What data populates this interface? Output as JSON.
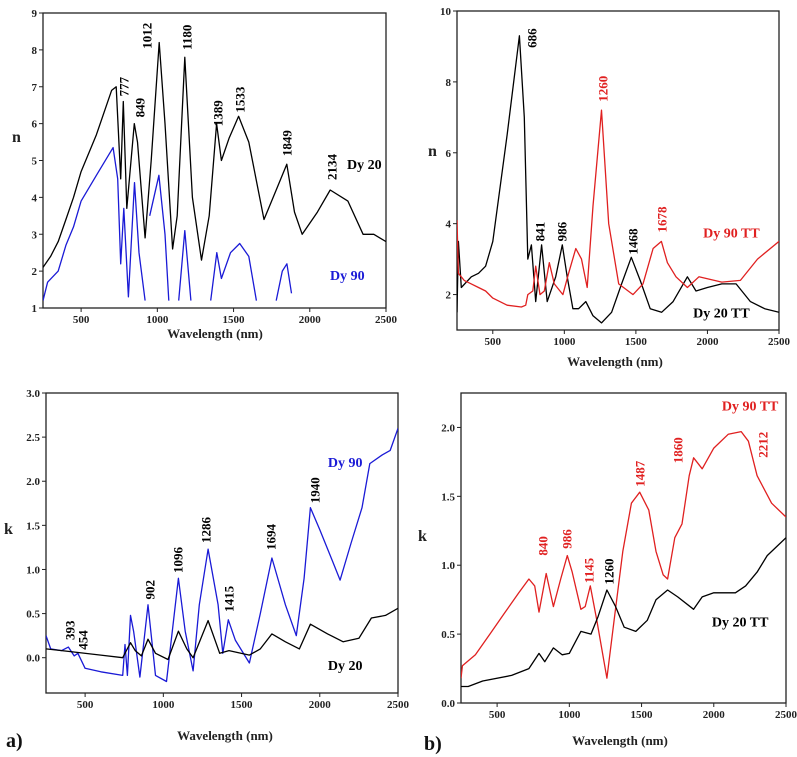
{
  "panel_labels": [
    "a)",
    "b)"
  ],
  "colors": {
    "Dy 20": "#000000",
    "Dy 90": "#1a1ad6",
    "Dy 20 TT": "#000000",
    "Dy 90 TT": "#e02020"
  },
  "chart_data": [
    {
      "type": "line",
      "xlabel": "Wavelength (nm)",
      "ylabel": "n",
      "xlim": [
        250,
        2500
      ],
      "ylim": [
        1,
        9
      ],
      "xticks": [
        500,
        1000,
        1500,
        2000,
        2500
      ],
      "yticks": [
        1,
        2,
        3,
        4,
        5,
        6,
        7,
        8,
        9
      ],
      "ytick_format": "0",
      "grid": false,
      "series": [
        {
          "name": "Dy 20",
          "color": "#000000",
          "x": [
            250,
            300,
            350,
            400,
            450,
            500,
            600,
            700,
            730,
            760,
            777,
            800,
            849,
            870,
            920,
            960,
            1012,
            1050,
            1100,
            1130,
            1180,
            1230,
            1290,
            1340,
            1389,
            1420,
            1470,
            1533,
            1600,
            1700,
            1780,
            1849,
            1900,
            1950,
            2050,
            2134,
            2250,
            2350,
            2420,
            2500
          ],
          "y": [
            2.1,
            2.4,
            2.8,
            3.4,
            4.0,
            4.7,
            5.7,
            6.9,
            7.0,
            4.5,
            6.6,
            3.7,
            6.0,
            5.5,
            2.9,
            5.0,
            8.2,
            6.0,
            2.6,
            3.5,
            7.8,
            4.0,
            2.3,
            3.5,
            6.0,
            5.0,
            5.6,
            6.2,
            5.5,
            3.4,
            4.2,
            4.9,
            3.6,
            3.0,
            3.6,
            4.2,
            3.9,
            3.0,
            3.0,
            2.8
          ]
        },
        {
          "name": "Dy 90",
          "color": "#1a1ad6",
          "x": [
            250,
            280,
            350,
            400,
            450,
            500,
            600,
            710,
            740,
            760,
            780,
            810,
            850,
            880,
            920,
            null,
            950,
            1010,
            1050,
            1075,
            null,
            1140,
            1180,
            1220,
            null,
            1350,
            1390,
            1420,
            1480,
            1540,
            1600,
            1650,
            null,
            1780,
            1820,
            1850,
            1880
          ],
          "y": [
            1.2,
            1.7,
            2.0,
            2.7,
            3.2,
            3.9,
            4.6,
            5.35,
            4.5,
            2.2,
            3.7,
            1.3,
            4.4,
            2.5,
            1.2,
            null,
            3.5,
            4.6,
            3.0,
            1.2,
            null,
            1.2,
            3.1,
            1.2,
            null,
            1.2,
            2.5,
            1.8,
            2.5,
            2.75,
            2.4,
            1.2,
            null,
            1.2,
            2.0,
            2.2,
            1.4
          ]
        }
      ],
      "annotations": [
        {
          "text": "777",
          "x": 781,
          "y": 6.74,
          "color": "#000000"
        },
        {
          "text": "849",
          "x": 886,
          "y": 6.17,
          "color": "#000000"
        },
        {
          "text": "1012",
          "x": 932,
          "y": 8.03,
          "color": "#000000"
        },
        {
          "text": "1180",
          "x": 1194,
          "y": 8.0,
          "color": "#000000"
        },
        {
          "text": "1389",
          "x": 1398,
          "y": 5.93,
          "color": "#000000"
        },
        {
          "text": "1533",
          "x": 1542,
          "y": 6.3,
          "color": "#000000"
        },
        {
          "text": "1849",
          "x": 1851,
          "y": 5.12,
          "color": "#000000"
        },
        {
          "text": "2134",
          "x": 2146,
          "y": 4.47,
          "color": "#000000"
        }
      ],
      "series_labels": [
        {
          "text": "Dy 20",
          "x": 2244,
          "y": 4.9,
          "color": "#000000"
        },
        {
          "text": "Dy 90",
          "x": 2133,
          "y": 1.9,
          "color": "#1a1ad6"
        }
      ]
    },
    {
      "type": "line",
      "xlabel": "Wavelength (nm)",
      "ylabel": "n",
      "xlim": [
        250,
        2500
      ],
      "ylim": [
        1,
        10
      ],
      "xticks": [
        500,
        1000,
        1500,
        2000,
        2500
      ],
      "yticks": [
        2,
        4,
        6,
        8,
        10
      ],
      "ytick_format": "0",
      "grid": false,
      "series": [
        {
          "name": "Dy 20 TT",
          "color": "#000000",
          "x": [
            250,
            260,
            280,
            350,
            400,
            450,
            500,
            600,
            686,
            720,
            745,
            770,
            800,
            841,
            880,
            940,
            986,
            1020,
            1060,
            1100,
            1150,
            1200,
            1260,
            1330,
            1400,
            1468,
            1530,
            1600,
            1680,
            1760,
            1860,
            1920,
            2000,
            2100,
            2200,
            2300,
            2400,
            2500
          ],
          "y": [
            1.5,
            3.5,
            2.2,
            2.5,
            2.6,
            2.8,
            3.5,
            6.5,
            9.3,
            7.0,
            3.0,
            3.4,
            1.8,
            3.4,
            1.8,
            2.5,
            3.4,
            2.5,
            1.6,
            1.6,
            1.8,
            1.4,
            1.2,
            1.5,
            2.3,
            3.05,
            2.4,
            1.6,
            1.5,
            1.8,
            2.5,
            2.1,
            2.2,
            2.3,
            2.3,
            1.8,
            1.6,
            1.5
          ]
        },
        {
          "name": "Dy 90 TT",
          "color": "#e02020",
          "x": [
            250,
            260,
            300,
            350,
            400,
            450,
            500,
            600,
            700,
            730,
            745,
            780,
            800,
            830,
            860,
            895,
            930,
            990,
            1030,
            1080,
            1120,
            1160,
            1200,
            1260,
            1310,
            1380,
            1480,
            1550,
            1620,
            1678,
            1720,
            1780,
            1860,
            1940,
            2100,
            2230,
            2350,
            2500
          ],
          "y": [
            4.1,
            2.6,
            2.4,
            2.3,
            2.2,
            2.1,
            1.9,
            1.7,
            1.65,
            1.7,
            2.0,
            2.1,
            2.8,
            2.0,
            2.1,
            2.9,
            2.3,
            2.0,
            2.6,
            3.3,
            3.0,
            2.2,
            4.5,
            7.2,
            4.0,
            2.3,
            2.0,
            2.3,
            3.3,
            3.5,
            2.9,
            2.5,
            2.2,
            2.5,
            2.35,
            2.4,
            3.0,
            3.5
          ]
        }
      ],
      "annotations": [
        {
          "text": "686",
          "x": 774,
          "y": 8.96,
          "color": "#000000"
        },
        {
          "text": "1260",
          "x": 1270,
          "y": 7.44,
          "color": "#e02020"
        },
        {
          "text": "841",
          "x": 830,
          "y": 3.5,
          "color": "#000000"
        },
        {
          "text": "986",
          "x": 984,
          "y": 3.5,
          "color": "#000000"
        },
        {
          "text": "1468",
          "x": 1480,
          "y": 3.13,
          "color": "#000000"
        },
        {
          "text": "1678",
          "x": 1683,
          "y": 3.75,
          "color": "#e02020"
        }
      ],
      "series_labels": [
        {
          "text": "Dy 90 TT",
          "x": 1970,
          "y": 3.75,
          "color": "#e02020"
        },
        {
          "text": "Dy 20 TT",
          "x": 1900,
          "y": 1.5,
          "color": "#000000"
        }
      ]
    },
    {
      "type": "line",
      "xlabel": "Wavelength (nm)",
      "ylabel": "k",
      "xlim": [
        250,
        2500
      ],
      "ylim": [
        -0.4,
        3.0
      ],
      "xticks": [
        500,
        1000,
        1500,
        2000,
        2500
      ],
      "yticks": [
        0.0,
        0.5,
        1.0,
        1.5,
        2.0,
        2.5,
        3.0
      ],
      "ytick_format": "0.0",
      "grid": false,
      "series": [
        {
          "name": "Dy 90",
          "color": "#1a1ad6",
          "x": [
            250,
            280,
            350,
            393,
            430,
            454,
            500,
            600,
            740,
            755,
            770,
            790,
            810,
            850,
            902,
            950,
            1020,
            1096,
            1140,
            1190,
            1230,
            1286,
            1350,
            1380,
            1415,
            1460,
            1550,
            1620,
            1694,
            1780,
            1850,
            1900,
            1940,
            2000,
            2080,
            2130,
            2200,
            2270,
            2320,
            2400,
            2450,
            2500
          ],
          "y": [
            0.25,
            0.1,
            0.08,
            0.12,
            0.02,
            0.05,
            -0.12,
            -0.16,
            -0.2,
            0.15,
            -0.2,
            0.48,
            0.3,
            -0.22,
            0.6,
            -0.2,
            -0.27,
            0.9,
            0.3,
            -0.15,
            0.6,
            1.23,
            0.6,
            0.05,
            0.43,
            0.2,
            -0.06,
            0.5,
            1.13,
            0.6,
            0.25,
            0.9,
            1.7,
            1.45,
            1.1,
            0.88,
            1.3,
            1.7,
            2.2,
            2.3,
            2.35,
            2.6
          ]
        },
        {
          "name": "Dy 20",
          "color": "#000000",
          "x": [
            250,
            400,
            600,
            740,
            790,
            820,
            860,
            902,
            950,
            1030,
            1096,
            1150,
            1190,
            1286,
            1360,
            1420,
            1550,
            1620,
            1694,
            1780,
            1870,
            1940,
            2050,
            2150,
            2250,
            2330,
            2420,
            2500
          ],
          "y": [
            0.1,
            0.07,
            0.03,
            0.0,
            0.17,
            0.08,
            0.02,
            0.21,
            0.05,
            -0.02,
            0.3,
            0.1,
            0.0,
            0.42,
            0.05,
            0.08,
            0.03,
            0.1,
            0.27,
            0.18,
            0.1,
            0.38,
            0.27,
            0.18,
            0.22,
            0.45,
            0.48,
            0.56
          ]
        }
      ],
      "annotations": [
        {
          "text": "393",
          "x": 403,
          "y": 0.2,
          "color": "#000000"
        },
        {
          "text": "454",
          "x": 486,
          "y": 0.09,
          "color": "#000000"
        },
        {
          "text": "902",
          "x": 915,
          "y": 0.66,
          "color": "#000000"
        },
        {
          "text": "1096",
          "x": 1094,
          "y": 0.96,
          "color": "#000000"
        },
        {
          "text": "1286",
          "x": 1272,
          "y": 1.3,
          "color": "#000000"
        },
        {
          "text": "1415",
          "x": 1419,
          "y": 0.52,
          "color": "#000000"
        },
        {
          "text": "1694",
          "x": 1688,
          "y": 1.22,
          "color": "#000000"
        },
        {
          "text": "1940",
          "x": 1969,
          "y": 1.75,
          "color": "#000000"
        }
      ],
      "series_labels": [
        {
          "text": "Dy 90",
          "x": 2052,
          "y": 2.22,
          "color": "#1a1ad6"
        },
        {
          "text": "Dy 20",
          "x": 2052,
          "y": -0.08,
          "color": "#000000"
        }
      ]
    },
    {
      "type": "line",
      "xlabel": "Wavelength (nm)",
      "ylabel": "k",
      "xlim": [
        250,
        2500
      ],
      "ylim": [
        0.0,
        2.25
      ],
      "xticks": [
        500,
        1000,
        1500,
        2000,
        2500
      ],
      "yticks": [
        0.0,
        0.5,
        1.0,
        1.5,
        2.0
      ],
      "ytick_format": "0.0",
      "grid": false,
      "series": [
        {
          "name": "Dy 90 TT",
          "color": "#e02020",
          "x": [
            250,
            260,
            350,
            450,
            550,
            650,
            720,
            760,
            790,
            840,
            890,
            940,
            986,
            1020,
            1080,
            1110,
            1145,
            1190,
            1260,
            1310,
            1370,
            1430,
            1487,
            1550,
            1600,
            1650,
            1680,
            1730,
            1780,
            1830,
            1860,
            1920,
            2000,
            2100,
            2190,
            2240,
            2300,
            2400,
            2500
          ],
          "y": [
            0.18,
            0.27,
            0.35,
            0.5,
            0.65,
            0.8,
            0.9,
            0.85,
            0.66,
            0.94,
            0.7,
            0.9,
            1.07,
            0.95,
            0.68,
            0.7,
            0.85,
            0.6,
            0.18,
            0.6,
            1.1,
            1.45,
            1.53,
            1.4,
            1.1,
            0.93,
            0.9,
            1.2,
            1.3,
            1.65,
            1.78,
            1.7,
            1.85,
            1.95,
            1.97,
            1.9,
            1.65,
            1.45,
            1.35
          ]
        },
        {
          "name": "Dy 20 TT",
          "color": "#000000",
          "x": [
            250,
            300,
            400,
            600,
            720,
            790,
            830,
            890,
            950,
            1000,
            1080,
            1150,
            1200,
            1260,
            1320,
            1380,
            1460,
            1540,
            1600,
            1680,
            1750,
            1860,
            1920,
            2000,
            2150,
            2220,
            2300,
            2370,
            2500
          ],
          "y": [
            0.12,
            0.12,
            0.16,
            0.2,
            0.25,
            0.36,
            0.3,
            0.4,
            0.35,
            0.36,
            0.52,
            0.5,
            0.63,
            0.82,
            0.7,
            0.55,
            0.52,
            0.6,
            0.75,
            0.82,
            0.77,
            0.68,
            0.77,
            0.8,
            0.8,
            0.85,
            0.95,
            1.07,
            1.2
          ]
        }
      ],
      "annotations": [
        {
          "text": "840",
          "x": 817,
          "y": 1.07,
          "color": "#e02020"
        },
        {
          "text": "986",
          "x": 983,
          "y": 1.12,
          "color": "#e02020"
        },
        {
          "text": "1145",
          "x": 1136,
          "y": 0.87,
          "color": "#e02020"
        },
        {
          "text": "1260",
          "x": 1274,
          "y": 0.86,
          "color": "#000000"
        },
        {
          "text": "1487",
          "x": 1489,
          "y": 1.57,
          "color": "#e02020"
        },
        {
          "text": "1860",
          "x": 1752,
          "y": 1.74,
          "color": "#e02020"
        },
        {
          "text": "2212",
          "x": 2340,
          "y": 1.78,
          "color": "#e02020"
        }
      ],
      "series_labels": [
        {
          "text": "Dy 90 TT",
          "x": 2056,
          "y": 2.16,
          "color": "#e02020"
        },
        {
          "text": "Dy 20 TT",
          "x": 1987,
          "y": 0.59,
          "color": "#000000"
        }
      ]
    }
  ]
}
